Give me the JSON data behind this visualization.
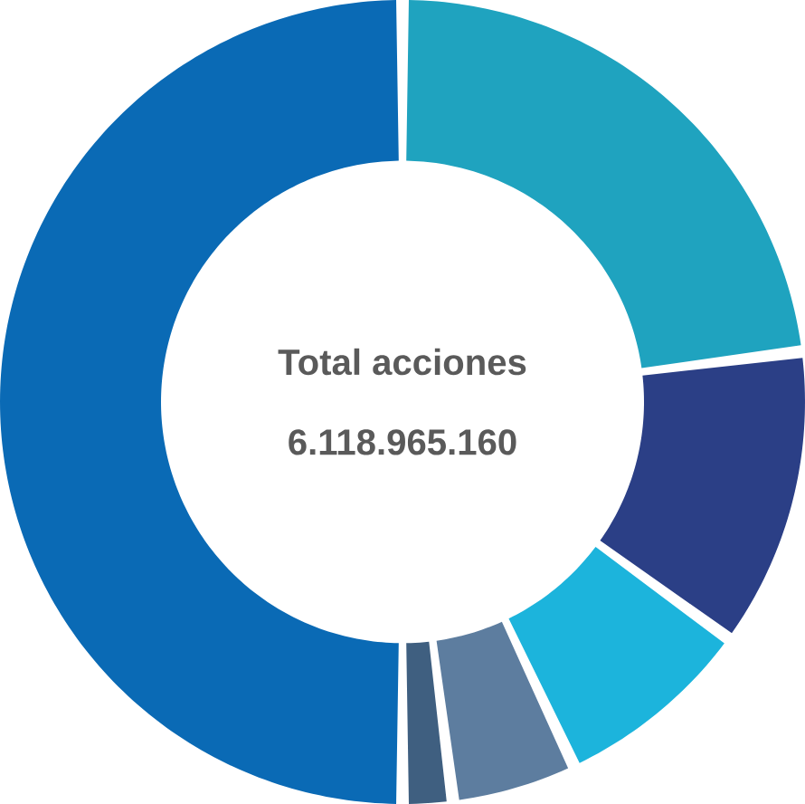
{
  "chart_data": {
    "type": "donut",
    "title": "Total acciones",
    "subtitle": "6.118.965.160",
    "categories": [
      null,
      null,
      null,
      null,
      null,
      null
    ],
    "values": [
      23,
      12,
      8,
      5,
      2,
      50
    ],
    "colors": [
      "#1fa3bf",
      "#2b3f86",
      "#1cb4dc",
      "#5d7d9f",
      "#3f5f80",
      "#0a6ab5"
    ]
  }
}
